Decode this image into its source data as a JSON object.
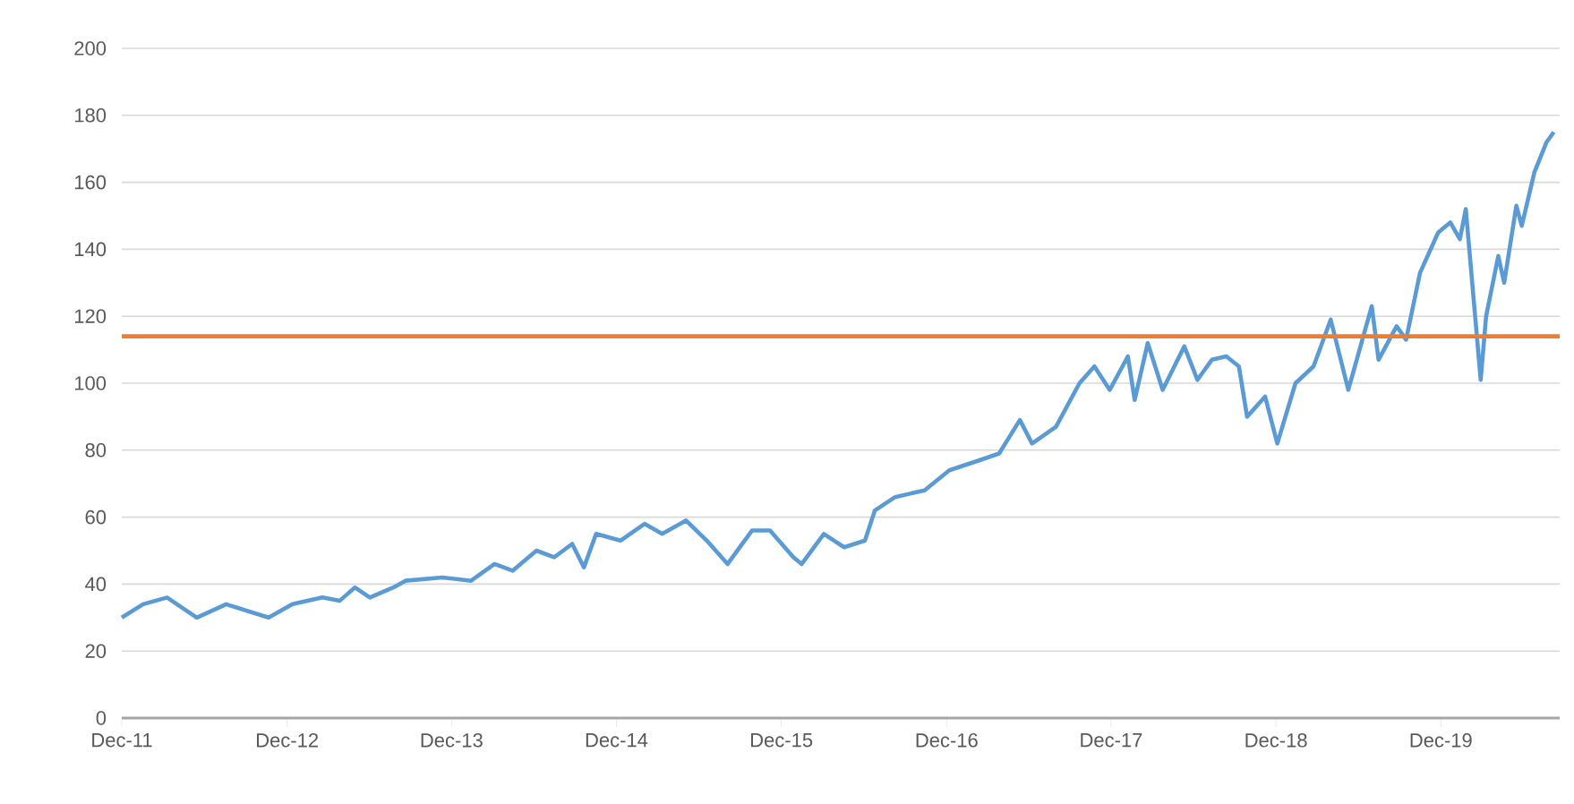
{
  "chart_data": {
    "type": "line",
    "x": [
      "2011-12-01",
      "2012-01-17",
      "2012-03-10",
      "2012-05-15",
      "2012-07-19",
      "2012-10-21",
      "2012-12-13",
      "2013-02-18",
      "2013-03-28",
      "2013-05-01",
      "2013-06-03",
      "2013-07-25",
      "2013-08-21",
      "2013-11-10",
      "2014-01-13",
      "2014-03-06",
      "2014-04-15",
      "2014-06-07",
      "2014-07-16",
      "2014-08-25",
      "2014-09-20",
      "2014-10-17",
      "2014-12-10",
      "2015-02-01",
      "2015-03-12",
      "2015-05-04",
      "2015-06-19",
      "2015-08-04",
      "2015-09-27",
      "2015-11-06",
      "2015-12-28",
      "2016-01-15",
      "2016-03-04",
      "2016-04-18",
      "2016-06-03",
      "2016-06-25",
      "2016-08-09",
      "2016-10-13",
      "2016-12-07",
      "2017-02-13",
      "2017-03-28",
      "2017-05-13",
      "2017-06-09",
      "2017-08-01",
      "2017-09-22",
      "2017-10-25",
      "2017-11-28",
      "2018-01-07",
      "2018-01-22",
      "2018-02-20",
      "2018-03-25",
      "2018-05-12",
      "2018-06-10",
      "2018-07-12",
      "2018-08-13",
      "2018-09-10",
      "2018-09-28",
      "2018-11-07",
      "2018-12-04",
      "2019-01-13",
      "2019-02-22",
      "2019-04-01",
      "2019-05-10",
      "2019-07-01",
      "2019-07-16",
      "2019-08-25",
      "2019-09-15",
      "2019-10-16",
      "2019-11-25",
      "2019-12-22",
      "2020-01-12",
      "2020-01-25",
      "2020-02-27",
      "2020-03-10",
      "2020-04-06",
      "2020-04-19",
      "2020-05-16",
      "2020-05-28",
      "2020-06-25",
      "2020-07-22",
      "2020-08-07"
    ],
    "values": [
      30,
      34,
      36,
      30,
      34,
      30,
      34,
      36,
      35,
      39,
      36,
      39,
      41,
      42,
      41,
      46,
      44,
      50,
      48,
      52,
      45,
      55,
      53,
      58,
      55,
      59,
      53,
      46,
      56,
      56,
      48,
      46,
      55,
      51,
      53,
      62,
      66,
      68,
      74,
      77,
      79,
      89,
      82,
      87,
      100,
      105,
      98,
      108,
      95,
      112,
      98,
      111,
      101,
      107,
      108,
      105,
      90,
      96,
      82,
      100,
      105,
      119,
      98,
      123,
      107,
      117,
      113,
      133,
      145,
      148,
      143,
      152,
      101,
      120,
      138,
      130,
      153,
      147,
      163,
      172,
      175
    ],
    "color": "#5b9bd5",
    "xlim": [
      "2011-12-01",
      "2020-08-20"
    ],
    "xticks": [
      {
        "value": "2011-12-01",
        "label": "Dec-11"
      },
      {
        "value": "2012-12-01",
        "label": "Dec-12"
      },
      {
        "value": "2013-12-01",
        "label": "Dec-13"
      },
      {
        "value": "2014-12-01",
        "label": "Dec-14"
      },
      {
        "value": "2015-12-01",
        "label": "Dec-15"
      },
      {
        "value": "2016-12-01",
        "label": "Dec-16"
      },
      {
        "value": "2017-12-01",
        "label": "Dec-17"
      },
      {
        "value": "2018-12-01",
        "label": "Dec-18"
      },
      {
        "value": "2019-12-01",
        "label": "Dec-19"
      }
    ],
    "ylim": [
      0,
      200
    ],
    "yticks": [
      0,
      20,
      40,
      60,
      80,
      100,
      120,
      140,
      160,
      180,
      200
    ],
    "grid": "y",
    "ref_lines": [
      {
        "axis": "y",
        "value": 114,
        "color": "#ed7d31"
      }
    ]
  }
}
